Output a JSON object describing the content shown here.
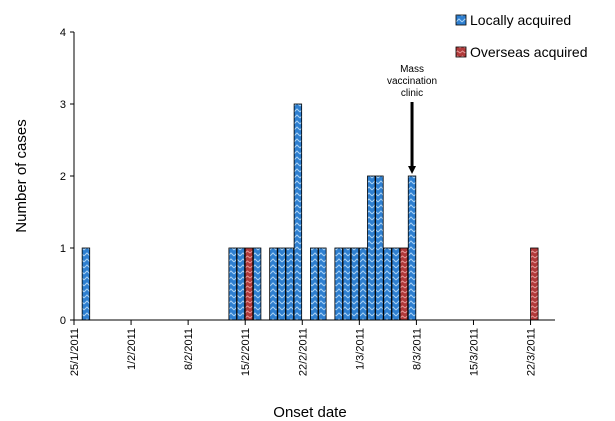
{
  "chart_data": {
    "type": "bar",
    "title": "",
    "xlabel": "Onset date",
    "ylabel": "Number of cases",
    "ylim": [
      0,
      4
    ],
    "yticks": [
      0,
      1,
      2,
      3,
      4
    ],
    "xlim": [
      "2011-01-25",
      "2011-03-25"
    ],
    "xtick_labels": [
      "25/1/2011",
      "1/2/2011",
      "8/2/2011",
      "15/2/2011",
      "22/2/2011",
      "1/3/2011",
      "8/3/2011",
      "15/3/2011",
      "22/3/2011"
    ],
    "xtick_dates": [
      "2011-01-25",
      "2011-02-01",
      "2011-02-08",
      "2011-02-15",
      "2011-02-22",
      "2011-03-01",
      "2011-03-08",
      "2011-03-15",
      "2011-03-22"
    ],
    "legend_position": "top-right",
    "series": [
      {
        "name": "Locally acquired",
        "color": "#2e7fd0",
        "points": [
          {
            "date": "2011-01-26",
            "value": 1
          },
          {
            "date": "2011-02-13",
            "value": 1
          },
          {
            "date": "2011-02-14",
            "value": 1
          },
          {
            "date": "2011-02-16",
            "value": 1
          },
          {
            "date": "2011-02-18",
            "value": 1
          },
          {
            "date": "2011-02-19",
            "value": 1
          },
          {
            "date": "2011-02-20",
            "value": 1
          },
          {
            "date": "2011-02-21",
            "value": 3
          },
          {
            "date": "2011-02-23",
            "value": 1
          },
          {
            "date": "2011-02-24",
            "value": 1
          },
          {
            "date": "2011-02-26",
            "value": 1
          },
          {
            "date": "2011-02-27",
            "value": 1
          },
          {
            "date": "2011-02-28",
            "value": 1
          },
          {
            "date": "2011-03-01",
            "value": 1
          },
          {
            "date": "2011-03-02",
            "value": 2
          },
          {
            "date": "2011-03-03",
            "value": 2
          },
          {
            "date": "2011-03-04",
            "value": 1
          },
          {
            "date": "2011-03-05",
            "value": 1
          },
          {
            "date": "2011-03-07",
            "value": 2
          }
        ]
      },
      {
        "name": "Overseas acquired",
        "color": "#b03a3a",
        "points": [
          {
            "date": "2011-02-15",
            "value": 1
          },
          {
            "date": "2011-03-06",
            "value": 1
          },
          {
            "date": "2011-03-22",
            "value": 1
          }
        ]
      }
    ],
    "annotations": [
      {
        "lines": [
          "Mass",
          "vaccination",
          "clinic"
        ],
        "date": "2011-03-07",
        "value": 2
      }
    ]
  }
}
